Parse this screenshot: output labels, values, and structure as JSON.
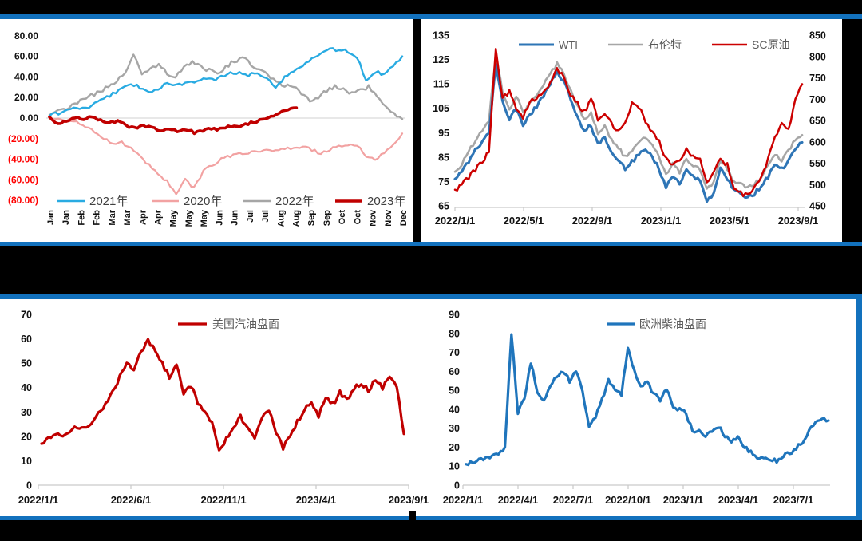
{
  "figure": {
    "divider_color": "#1271BD",
    "background": "#FFFFFF"
  },
  "chart_data": [
    {
      "id": "seasonal_spread",
      "type": "line",
      "legend_position": "bottom",
      "ylim": [
        -80,
        80
      ],
      "negative_label_color": "#FF0000",
      "y_ticks": [
        {
          "label": "80.00",
          "v": 80
        },
        {
          "label": "60.00",
          "v": 60
        },
        {
          "label": "40.00",
          "v": 40
        },
        {
          "label": "20.00",
          "v": 20
        },
        {
          "label": "0.00",
          "v": 0
        },
        {
          "label": "(20.00)",
          "v": -20
        },
        {
          "label": "(40.00)",
          "v": -40
        },
        {
          "label": "(60.00)",
          "v": -60
        },
        {
          "label": "(80.00)",
          "v": -80
        }
      ],
      "x_labels": [
        "Jan",
        "Jan",
        "Feb",
        "Feb",
        "Mar",
        "Mar",
        "Apr",
        "Apr",
        "May",
        "May",
        "May",
        "Jun",
        "Jun",
        "Jul",
        "Jul",
        "Aug",
        "Aug",
        "Sep",
        "Sep",
        "Oct",
        "Oct",
        "Nov",
        "Nov",
        "Dec"
      ],
      "legend_order": [
        "2021年",
        "2020年",
        "2022年",
        "2023年"
      ],
      "series": [
        {
          "name": "2020年",
          "color": "#F2A2A2",
          "width": 2.2,
          "jitter": 2.2,
          "seed": 13,
          "values": [
            0,
            -2,
            -5,
            -3,
            -8,
            -14,
            -20,
            -25,
            -24,
            -30,
            -38,
            -45,
            -55,
            -62,
            -75,
            -60,
            -68,
            -52,
            -45,
            -40,
            -37,
            -35,
            -33,
            -32,
            -30,
            -31,
            -29,
            -30,
            -28,
            -31,
            -34,
            -30,
            -28,
            -27,
            -26,
            -36,
            -42,
            -33,
            -25,
            -15
          ]
        },
        {
          "name": "2022年",
          "color": "#A6A6A6",
          "width": 2.4,
          "jitter": 2.8,
          "seed": 21,
          "values": [
            3,
            7,
            10,
            14,
            18,
            22,
            26,
            30,
            35,
            45,
            62,
            42,
            48,
            53,
            44,
            40,
            48,
            55,
            50,
            46,
            42,
            50,
            56,
            58,
            52,
            47,
            42,
            35,
            30,
            32,
            24,
            17,
            21,
            26,
            30,
            28,
            24,
            28,
            30,
            22,
            12,
            5,
            -1
          ]
        },
        {
          "name": "2021年",
          "color": "#29ABE2",
          "width": 2.4,
          "jitter": 2.2,
          "seed": 7,
          "values": [
            2,
            5,
            8,
            10,
            9,
            14,
            19,
            24,
            28,
            33,
            30,
            26,
            29,
            33,
            31,
            34,
            36,
            38,
            37,
            40,
            43,
            45,
            42,
            44,
            40,
            31,
            39,
            46,
            52,
            58,
            63,
            66,
            67,
            64,
            60,
            37,
            45,
            43,
            50,
            60
          ]
        },
        {
          "name": "2023年",
          "color": "#C00000",
          "width": 3.6,
          "jitter": 1.5,
          "seed": 5,
          "t_end": 0.7,
          "values": [
            1,
            -6,
            -3,
            1,
            -1,
            1,
            -2,
            -5,
            -3,
            -7,
            -10,
            -7,
            -9,
            -12,
            -10,
            -13,
            -11,
            -14,
            -12,
            -10,
            -11,
            -8,
            -9,
            -6,
            -4,
            -1,
            2,
            5,
            8,
            10
          ]
        }
      ]
    },
    {
      "id": "crude_benchmarks",
      "type": "line",
      "legend_position": "top",
      "left_ylim": [
        65,
        135
      ],
      "right_ylim": [
        450,
        850
      ],
      "left_ticks": [
        "135",
        "125",
        "115",
        "105",
        "95",
        "85",
        "75",
        "65"
      ],
      "right_ticks": [
        "850",
        "800",
        "750",
        "700",
        "650",
        "600",
        "550",
        "500",
        "450"
      ],
      "x_ticks": [
        "2022/1/1",
        "2022/5/1",
        "2022/9/1",
        "2023/1/1",
        "2023/5/1",
        "2023/9/1"
      ],
      "legend_order": [
        "WTI",
        "布伦特",
        "SC原油"
      ],
      "series": [
        {
          "name": "布伦特",
          "color": "#A6A6A6",
          "width": 2.6,
          "axis": "left",
          "jitter": 2.6,
          "seed": 31,
          "values": [
            79,
            82,
            87,
            92,
            96,
            100,
            127,
            112,
            105,
            110,
            103,
            107,
            111,
            115,
            119,
            123,
            119,
            113,
            106,
            101,
            103,
            95,
            98,
            92,
            89,
            85,
            88,
            91,
            93,
            90,
            85,
            78,
            82,
            79,
            84,
            81,
            80,
            72,
            75,
            84,
            80,
            75,
            74,
            72,
            74,
            77,
            81,
            86,
            84,
            88,
            92,
            94
          ]
        },
        {
          "name": "WTI",
          "color": "#2E75B6",
          "width": 3.1,
          "axis": "left",
          "jitter": 2.6,
          "seed": 17,
          "values": [
            76,
            79,
            83,
            88,
            91,
            95,
            123,
            108,
            100,
            105,
            98,
            102,
            106,
            110,
            115,
            120,
            116,
            109,
            101,
            96,
            98,
            90,
            93,
            87,
            84,
            80,
            83,
            86,
            88,
            85,
            80,
            73,
            77,
            74,
            80,
            77,
            76,
            67,
            70,
            80,
            76,
            71,
            70,
            68,
            70,
            73,
            77,
            82,
            80,
            84,
            88,
            91
          ]
        },
        {
          "name": "SC原油",
          "color": "#CC0000",
          "width": 2.5,
          "axis": "right",
          "jitter": 3.2,
          "seed": 43,
          "values": [
            488,
            500,
            515,
            535,
            555,
            575,
            820,
            700,
            720,
            680,
            660,
            690,
            705,
            720,
            740,
            770,
            750,
            710,
            690,
            670,
            700,
            655,
            670,
            640,
            625,
            650,
            690,
            680,
            650,
            620,
            600,
            560,
            545,
            560,
            580,
            565,
            555,
            505,
            525,
            560,
            545,
            495,
            480,
            475,
            490,
            520,
            560,
            610,
            650,
            630,
            700,
            735
          ]
        }
      ]
    },
    {
      "id": "us_gasoline_crack",
      "type": "line",
      "legend_position": "top",
      "ylim": [
        0,
        70
      ],
      "y_ticks": [
        "70",
        "60",
        "50",
        "40",
        "30",
        "20",
        "10",
        "0"
      ],
      "x_ticks": [
        "2022/1/1",
        "2022/6/1",
        "2022/11/1",
        "2023/4/1",
        "2023/9/1"
      ],
      "legend_order": [
        "美国汽油盘面"
      ],
      "series": [
        {
          "name": "美国汽油盘面",
          "color": "#C00000",
          "width": 3.2,
          "jitter": 3.0,
          "seed": 57,
          "values": [
            17,
            19,
            21,
            20,
            22,
            24,
            23,
            26,
            29,
            33,
            38,
            44,
            50,
            47,
            55,
            59,
            56,
            50,
            44,
            49,
            38,
            41,
            34,
            30,
            25,
            14,
            19,
            23,
            28,
            24,
            20,
            27,
            31,
            22,
            15,
            20,
            26,
            31,
            34,
            28,
            36,
            33,
            38,
            35,
            40,
            42,
            39,
            43,
            40,
            44,
            41,
            21
          ]
        }
      ]
    },
    {
      "id": "eu_diesel_crack",
      "type": "line",
      "legend_position": "top",
      "ylim": [
        0,
        90
      ],
      "y_ticks": [
        "90",
        "80",
        "70",
        "60",
        "50",
        "40",
        "30",
        "20",
        "10",
        "0"
      ],
      "x_ticks": [
        "2022/1/1",
        "2022/4/1",
        "2022/7/1",
        "2022/10/1",
        "2023/1/1",
        "2023/4/1",
        "2023/7/1"
      ],
      "legend_order": [
        "欧洲柴油盘面"
      ],
      "series": [
        {
          "name": "欧洲柴油盘面",
          "color": "#1F75BC",
          "width": 3.2,
          "jitter": 3.0,
          "seed": 71,
          "values": [
            11,
            12,
            13,
            14,
            16,
            17,
            20,
            80,
            38,
            45,
            65,
            48,
            44,
            52,
            58,
            60,
            55,
            60,
            50,
            30,
            36,
            45,
            55,
            50,
            48,
            73,
            60,
            52,
            55,
            48,
            45,
            50,
            42,
            40,
            38,
            28,
            30,
            26,
            29,
            31,
            26,
            23,
            25,
            20,
            17,
            15,
            13,
            14,
            13,
            15,
            17,
            19,
            23,
            28,
            33,
            36,
            34
          ]
        }
      ]
    }
  ]
}
